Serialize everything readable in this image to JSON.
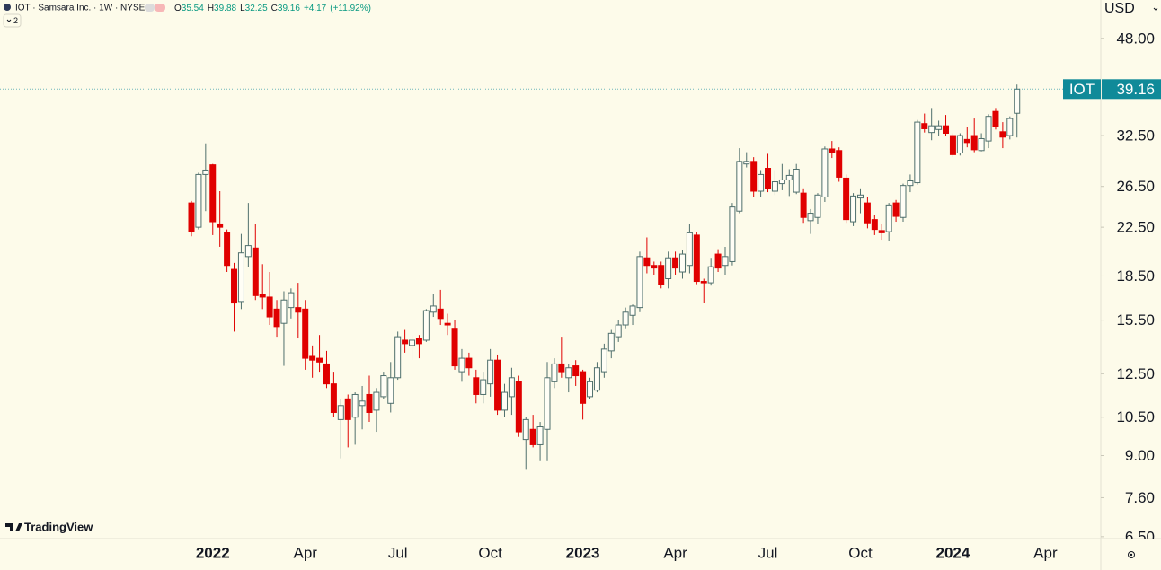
{
  "header": {
    "symbol_line": "IOT · Samsara Inc. · 1W · NYSE",
    "fields": [
      {
        "label": "O",
        "value": 35.54
      },
      {
        "label": "H",
        "value": 39.88
      },
      {
        "label": "L",
        "value": 32.25
      },
      {
        "label": "C",
        "value": 39.16
      }
    ],
    "change": {
      "value": 4.17,
      "label": "+4.17"
    },
    "change_pct": {
      "value": 11.92,
      "label": "(+11.92%)"
    },
    "indicators_count": 2
  },
  "currency": "USD",
  "logo": "TradingView",
  "chart_data": {
    "type": "candlestick",
    "price_tag": "IOT",
    "log_scale": true,
    "up_color": "#fffef6",
    "up_border": "#4f6f6c",
    "down_color": "#e00000",
    "tag_color": "#108a99",
    "ylim": [
      6.45,
      56.0
    ],
    "yticks": [
      {
        "value": 48,
        "label": "48.00"
      },
      {
        "value": 32.5,
        "label": "32.50"
      },
      {
        "value": 26.5,
        "label": "26.50"
      },
      {
        "value": 22.5,
        "label": "22.50"
      },
      {
        "value": 18.5,
        "label": "18.50"
      },
      {
        "value": 15.5,
        "label": "15.50"
      },
      {
        "value": 12.5,
        "label": "12.50"
      },
      {
        "value": 10.5,
        "label": "10.50"
      },
      {
        "value": 9,
        "label": "9.00"
      },
      {
        "value": 7.6,
        "label": "7.60"
      },
      {
        "value": 6.5,
        "label": "6.50"
      }
    ],
    "categories": [
      null,
      null,
      null,
      "2022",
      null,
      null,
      null,
      null,
      null,
      null,
      null,
      null,
      null,
      null,
      null,
      null,
      "Apr",
      null,
      null,
      null,
      null,
      null,
      null,
      null,
      null,
      null,
      null,
      null,
      null,
      "Jul",
      null,
      null,
      null,
      null,
      null,
      null,
      null,
      null,
      null,
      null,
      null,
      null,
      "Oct",
      null,
      null,
      null,
      null,
      null,
      null,
      null,
      null,
      null,
      null,
      null,
      null,
      "2023",
      null,
      null,
      null,
      null,
      null,
      null,
      null,
      null,
      null,
      null,
      null,
      null,
      "Apr",
      null,
      null,
      null,
      null,
      null,
      null,
      null,
      null,
      null,
      null,
      null,
      null,
      "Jul",
      null,
      null,
      null,
      null,
      null,
      null,
      null,
      null,
      null,
      null,
      null,
      null,
      "Oct",
      null,
      null,
      null,
      null,
      null,
      null,
      null,
      null,
      null,
      null,
      null,
      null,
      "2024",
      null,
      null,
      null,
      null,
      null,
      null,
      null,
      null,
      null,
      null,
      null,
      null,
      "Apr"
    ],
    "open": [
      24.8,
      22.5,
      27.8,
      28.9,
      22.8,
      22.0,
      19.0,
      16.7,
      20.0,
      20.7,
      17.2,
      17.0,
      16.2,
      15.3,
      16.3,
      16.3,
      16.2,
      13.4,
      13.3,
      13.0,
      12.0,
      10.4,
      11.3,
      10.5,
      11.0,
      11.5,
      10.8,
      11.4,
      11.1,
      12.3,
      14.3,
      14.0,
      14.4,
      14.3,
      16.0,
      16.2,
      15.3,
      15.0,
      12.6,
      13.3,
      12.3,
      11.5,
      12.0,
      13.2,
      10.8,
      11.4,
      12.1,
      9.6,
      10.0,
      9.4,
      10.0,
      12.1,
      13.0,
      12.3,
      12.9,
      12.6,
      11.4,
      11.7,
      12.6,
      13.7,
      14.5,
      15.2,
      15.8,
      16.3,
      19.9,
      19.3,
      19.3,
      18.3,
      19.9,
      18.8,
      19.3,
      21.8,
      18.1,
      18.0,
      20.2,
      19.3,
      19.6,
      24.0,
      29.0,
      29.3,
      26.0,
      28.5,
      26.0,
      26.8,
      27.2,
      25.9,
      25.8,
      23.1,
      23.4,
      25.4,
      30.8,
      30.6,
      27.4,
      23.0,
      25.3,
      24.8,
      23.2,
      22.2,
      22.1,
      24.8,
      23.4,
      26.6,
      26.9,
      34.1,
      32.9,
      33.3,
      33.8,
      32.5,
      30.3,
      32.0,
      32.5,
      30.6,
      31.8,
      35.8,
      33.0,
      32.5,
      35.54,
      null,
      null,
      null,
      null
    ],
    "high": [
      25.0,
      28.0,
      31.5,
      29.0,
      26.0,
      22.3,
      19.5,
      21.9,
      24.8,
      22.8,
      19.4,
      18.8,
      16.8,
      17.4,
      17.6,
      18.0,
      16.8,
      14.0,
      14.6,
      13.7,
      12.6,
      11.3,
      11.5,
      11.6,
      11.9,
      12.4,
      11.8,
      12.6,
      13.1,
      14.8,
      14.9,
      14.6,
      14.6,
      16.2,
      17.2,
      17.5,
      15.9,
      15.5,
      13.8,
      13.6,
      12.7,
      12.6,
      13.8,
      13.5,
      12.0,
      12.8,
      12.4,
      10.5,
      10.6,
      10.3,
      13.1,
      13.3,
      14.5,
      13.0,
      13.2,
      12.7,
      12.3,
      13.1,
      14.1,
      14.9,
      15.5,
      16.3,
      16.5,
      20.4,
      21.6,
      19.6,
      19.6,
      20.4,
      20.4,
      20.5,
      22.8,
      22.1,
      18.3,
      19.9,
      20.6,
      20.8,
      24.8,
      30.9,
      30.4,
      29.8,
      28.3,
      30.2,
      28.3,
      29.0,
      28.4,
      29.0,
      26.3,
      24.2,
      25.8,
      31.1,
      31.8,
      31.0,
      27.8,
      25.8,
      26.3,
      25.4,
      23.6,
      22.8,
      24.8,
      25.1,
      26.8,
      27.8,
      34.6,
      35.5,
      36.3,
      34.5,
      35.3,
      32.8,
      32.8,
      33.7,
      34.8,
      32.8,
      35.4,
      36.3,
      34.3,
      35.1,
      39.88,
      null,
      null,
      null,
      null
    ],
    "low": [
      21.7,
      22.3,
      24.0,
      21.8,
      20.8,
      18.8,
      14.8,
      16.2,
      19.2,
      16.8,
      16.2,
      15.2,
      14.5,
      12.9,
      15.6,
      14.4,
      12.7,
      12.3,
      12.6,
      11.8,
      10.5,
      8.9,
      9.3,
      9.4,
      10.0,
      10.3,
      9.9,
      11.3,
      10.7,
      12.2,
      13.6,
      13.2,
      13.3,
      14.2,
      15.7,
      15.2,
      14.6,
      12.7,
      12.1,
      12.4,
      11.1,
      11.1,
      11.4,
      10.6,
      10.5,
      10.6,
      9.7,
      8.5,
      9.3,
      8.8,
      8.8,
      11.8,
      12.3,
      11.6,
      11.9,
      10.4,
      11.3,
      11.6,
      12.3,
      13.3,
      14.2,
      15.0,
      15.2,
      16.0,
      18.7,
      18.6,
      17.6,
      17.6,
      18.6,
      18.3,
      18.7,
      17.9,
      16.6,
      17.8,
      18.8,
      18.6,
      19.3,
      23.8,
      28.6,
      25.4,
      25.4,
      25.9,
      25.6,
      26.1,
      25.5,
      25.7,
      22.9,
      21.9,
      22.8,
      24.9,
      29.7,
      27.0,
      22.9,
      22.6,
      23.8,
      22.4,
      21.8,
      21.4,
      21.3,
      23.0,
      23.0,
      25.9,
      26.7,
      32.9,
      31.9,
      32.5,
      32.5,
      29.8,
      30.0,
      31.0,
      30.4,
      30.5,
      30.9,
      33.3,
      30.9,
      32.0,
      32.25,
      null,
      null,
      null,
      null
    ],
    "close": [
      22.1,
      27.8,
      28.3,
      23.0,
      22.5,
      19.3,
      16.6,
      20.3,
      20.9,
      17.1,
      17.0,
      15.7,
      15.1,
      16.8,
      17.3,
      16.0,
      13.3,
      13.2,
      13.1,
      12.0,
      10.7,
      11.0,
      10.4,
      11.5,
      11.2,
      10.7,
      11.6,
      12.4,
      12.3,
      14.5,
      14.1,
      14.3,
      14.1,
      16.1,
      16.4,
      15.6,
      15.2,
      12.9,
      13.3,
      12.8,
      11.5,
      12.2,
      13.2,
      10.8,
      11.6,
      12.3,
      9.9,
      10.4,
      9.4,
      10.1,
      12.3,
      13.0,
      12.6,
      12.8,
      12.4,
      11.1,
      12.1,
      12.8,
      13.8,
      14.7,
      15.2,
      16.0,
      16.4,
      20.0,
      19.3,
      19.1,
      17.9,
      19.9,
      19.1,
      20.2,
      22.0,
      18.1,
      18.0,
      19.2,
      19.1,
      20.0,
      24.4,
      29.3,
      29.3,
      26.0,
      27.8,
      26.3,
      27.0,
      27.2,
      27.7,
      28.4,
      23.4,
      23.8,
      25.6,
      30.8,
      30.4,
      27.5,
      23.2,
      25.5,
      25.6,
      22.9,
      22.3,
      22.0,
      24.6,
      23.5,
      26.6,
      27.1,
      34.3,
      33.4,
      33.8,
      33.8,
      32.8,
      30.1,
      32.5,
      31.6,
      30.7,
      32.1,
      35.1,
      33.7,
      32.3,
      34.8,
      39.16,
      null,
      null,
      null,
      null
    ]
  }
}
